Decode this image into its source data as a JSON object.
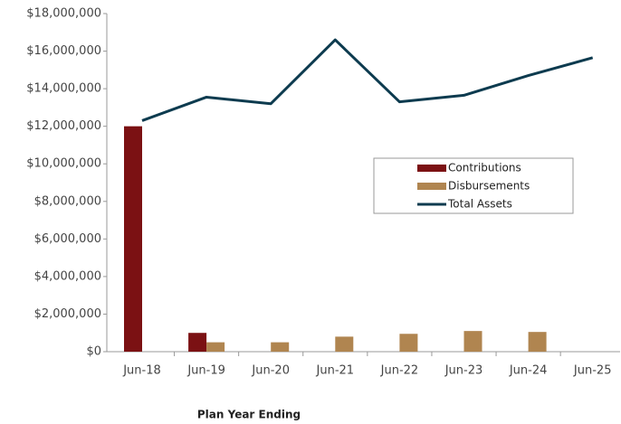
{
  "chart_data": {
    "type": "bar-line",
    "x_label": "Plan Year Ending",
    "categories": [
      "Jun-18",
      "Jun-19",
      "Jun-20",
      "Jun-21",
      "Jun-22",
      "Jun-23",
      "Jun-24",
      "Jun-25"
    ],
    "series": [
      {
        "name": "Contributions",
        "type": "bar",
        "color": "#7b1113",
        "values": [
          12000000,
          1000000,
          null,
          null,
          null,
          null,
          null,
          null
        ]
      },
      {
        "name": "Disbursements",
        "type": "bar",
        "color": "#b08550",
        "values": [
          null,
          500000,
          500000,
          800000,
          950000,
          1100000,
          1050000,
          null
        ]
      },
      {
        "name": "Total Assets",
        "type": "line",
        "color": "#0d3b4f",
        "values": [
          12300000,
          13550000,
          13200000,
          16600000,
          13300000,
          13650000,
          14700000,
          15650000
        ]
      }
    ],
    "ylim": [
      0,
      18000000
    ],
    "yticks": [
      {
        "value": 0,
        "label": "$0"
      },
      {
        "value": 2000000,
        "label": "$2,000,000"
      },
      {
        "value": 4000000,
        "label": "$4,000,000"
      },
      {
        "value": 6000000,
        "label": "$6,000,000"
      },
      {
        "value": 8000000,
        "label": "$8,000,000"
      },
      {
        "value": 10000000,
        "label": "$10,000,000"
      },
      {
        "value": 12000000,
        "label": "$12,000,000"
      },
      {
        "value": 14000000,
        "label": "$14,000,000"
      },
      {
        "value": 16000000,
        "label": "$16,000,000"
      },
      {
        "value": 18000000,
        "label": "$18,000,000"
      }
    ],
    "grid": false,
    "legend": "right"
  }
}
